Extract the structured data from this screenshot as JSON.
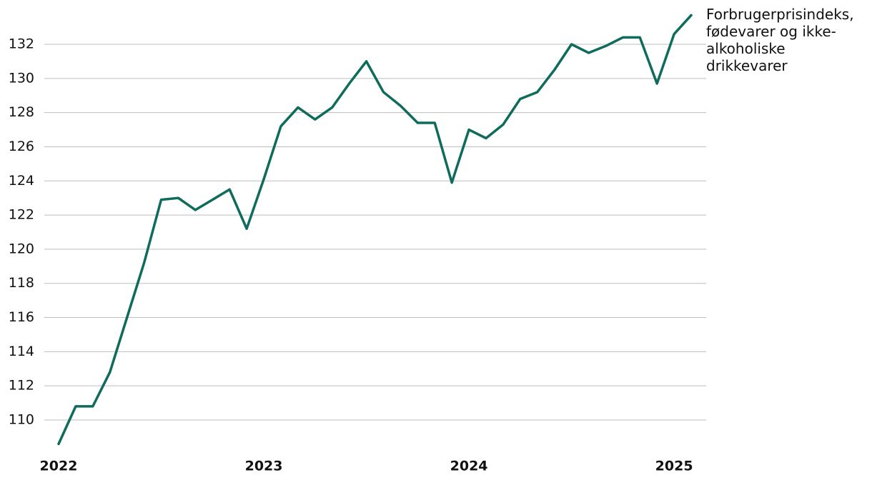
{
  "chart_data": {
    "type": "line",
    "categories": [
      "2022",
      null,
      null,
      null,
      null,
      null,
      null,
      null,
      null,
      null,
      null,
      null,
      "2023",
      null,
      null,
      null,
      null,
      null,
      null,
      null,
      null,
      null,
      null,
      null,
      "2024",
      null,
      null,
      null,
      null,
      null,
      null,
      null,
      null,
      null,
      null,
      null,
      "2025",
      null
    ],
    "series": [
      {
        "name": "Forbrugerprisindeks, fødevarer og ikke-alkoholiske drikkevarer",
        "color": "#0f6b5c",
        "values": [
          108.6,
          110.8,
          110.8,
          112.8,
          116.0,
          119.2,
          122.9,
          123.0,
          122.3,
          122.9,
          123.5,
          121.2,
          124.1,
          127.2,
          128.3,
          127.6,
          128.3,
          129.7,
          131.0,
          129.2,
          128.4,
          127.4,
          127.4,
          123.9,
          127.0,
          126.5,
          127.3,
          128.8,
          129.2,
          130.5,
          132.0,
          131.5,
          131.9,
          132.4,
          132.4,
          129.7,
          132.6,
          133.7
        ]
      }
    ],
    "ylim": [
      108,
      134
    ],
    "yticks": [
      110,
      112,
      114,
      116,
      118,
      120,
      122,
      124,
      126,
      128,
      130,
      132
    ],
    "grid": true
  }
}
